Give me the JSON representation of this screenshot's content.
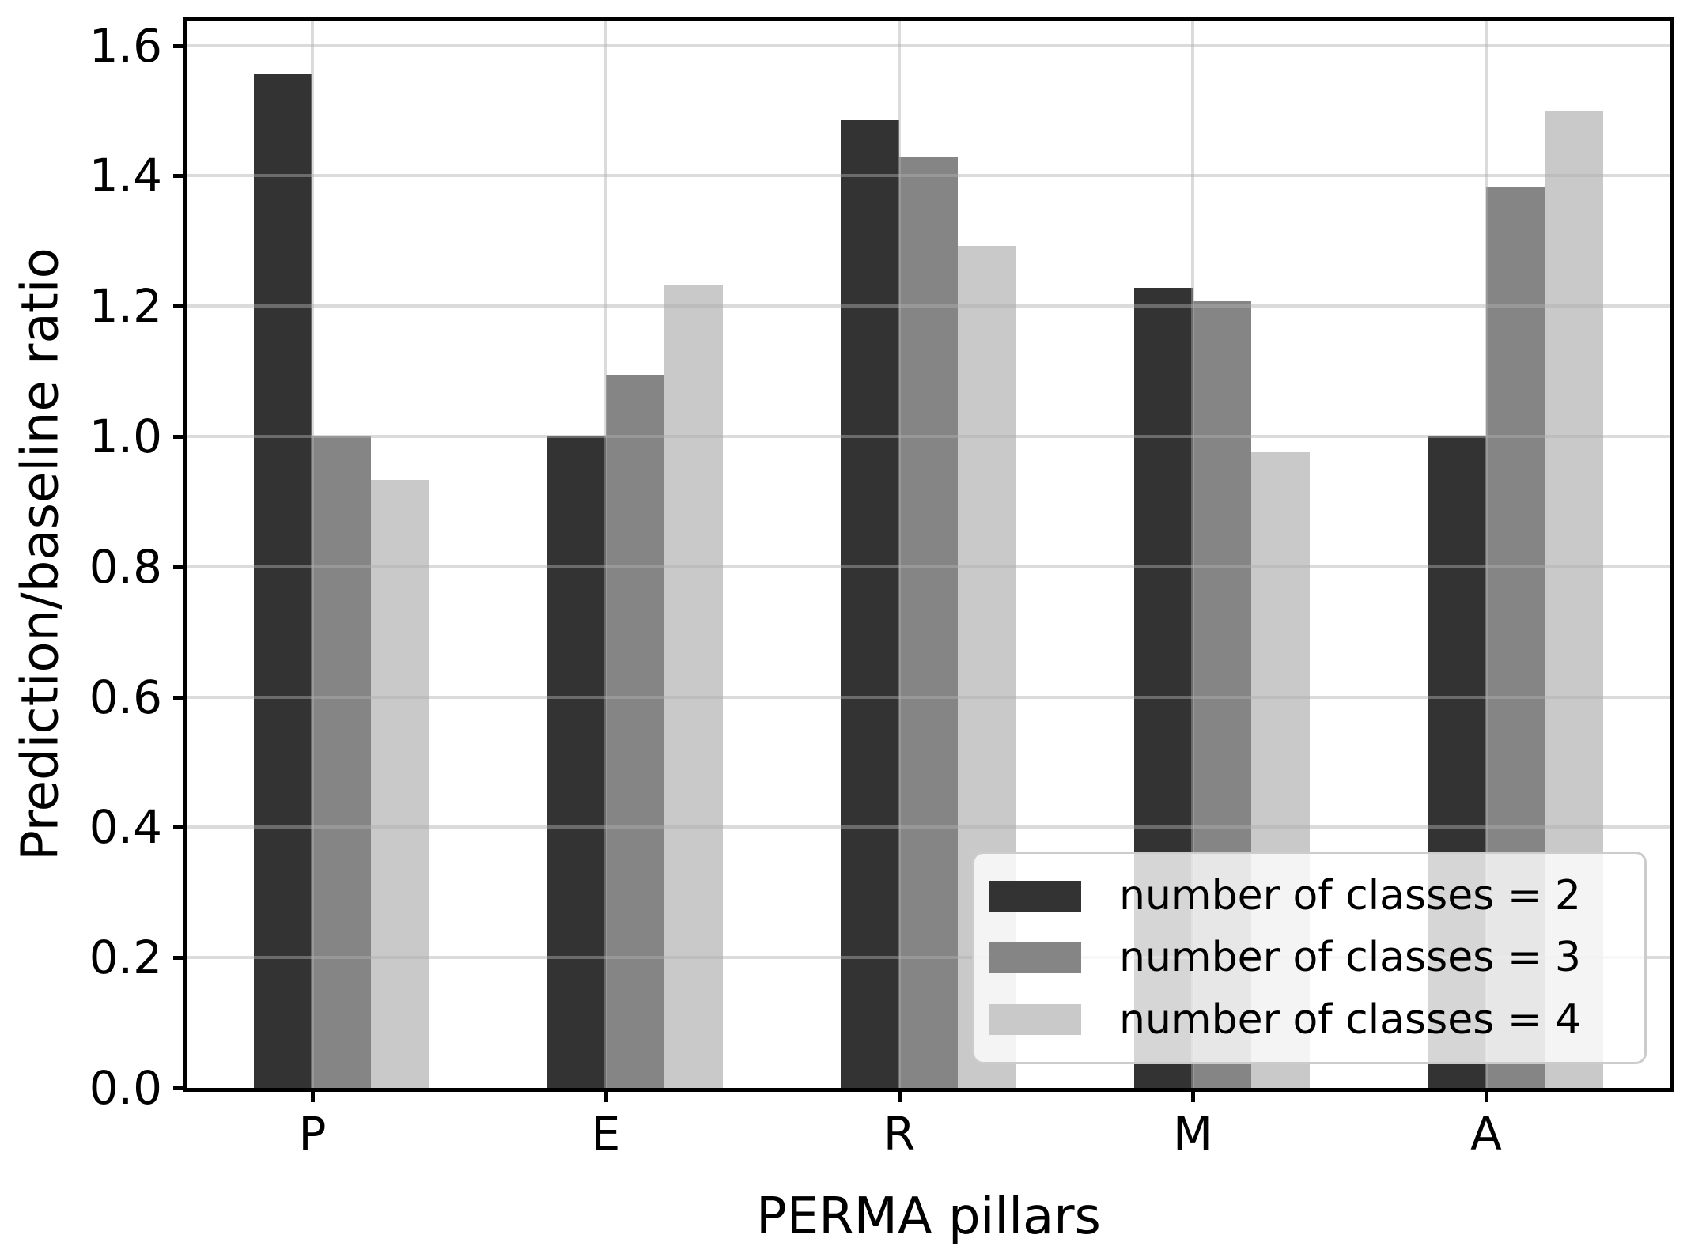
{
  "chart_data": {
    "type": "bar",
    "title": "",
    "xlabel": "PERMA pillars",
    "ylabel": "Prediction/baseline ratio",
    "categories": [
      "P",
      "E",
      "R",
      "M",
      "A"
    ],
    "series": [
      {
        "name": "number of classes = 2",
        "color": "#333333",
        "values": [
          1.556,
          1.0,
          1.485,
          1.228,
          1.0
        ]
      },
      {
        "name": "number of classes = 3",
        "color": "#858585",
        "values": [
          1.0,
          1.095,
          1.428,
          1.208,
          1.382
        ]
      },
      {
        "name": "number of classes = 4",
        "color": "#c9c9c9",
        "values": [
          0.933,
          1.233,
          1.292,
          0.976,
          1.5
        ]
      }
    ],
    "ylim": [
      0.0,
      1.64
    ],
    "yticks": [
      0.0,
      0.2,
      0.4,
      0.6,
      0.8,
      1.0,
      1.2,
      1.4,
      1.6
    ],
    "ytick_labels": [
      "0.0",
      "0.2",
      "0.4",
      "0.6",
      "0.8",
      "1.0",
      "1.2",
      "1.4",
      "1.6"
    ],
    "grid": true,
    "grid_color": "#b0b0b0",
    "legend_position": "lower right",
    "background": "#ffffff"
  }
}
